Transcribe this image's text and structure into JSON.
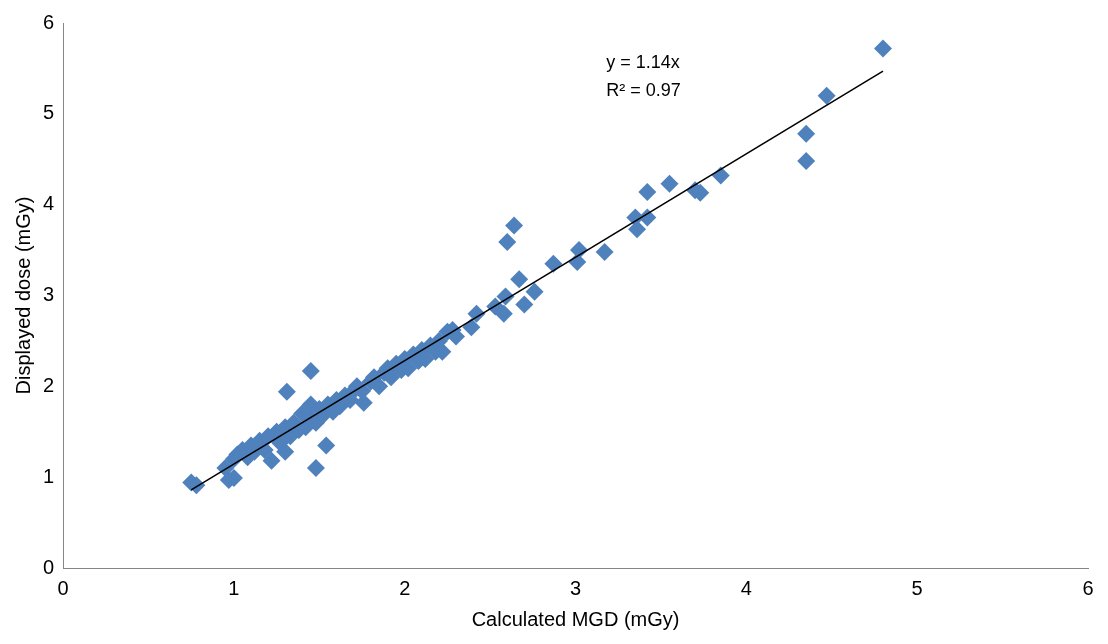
{
  "chart_data": {
    "type": "scatter",
    "xlabel": "Calculated MGD (mGy)",
    "ylabel": "Displayed dose (mGy)",
    "xlim": [
      0,
      6
    ],
    "ylim": [
      0,
      6
    ],
    "xticks": [
      0,
      1,
      2,
      3,
      4,
      5,
      6
    ],
    "yticks": [
      0,
      1,
      2,
      3,
      4,
      5,
      6
    ],
    "marker": "diamond",
    "legend": false,
    "annotations": [
      "y = 1.14x",
      "R² = 0.97"
    ],
    "series": [
      {
        "color": "#4f81bd",
        "x": [
          0.75,
          0.78,
          0.95,
          0.97,
          1.0,
          1.0,
          1.02,
          1.05,
          1.08,
          1.1,
          1.12,
          1.15,
          1.18,
          1.2,
          1.22,
          1.25,
          1.27,
          1.3,
          1.3,
          1.31,
          1.33,
          1.35,
          1.38,
          1.4,
          1.42,
          1.45,
          1.45,
          1.45,
          1.48,
          1.48,
          1.5,
          1.52,
          1.54,
          1.55,
          1.58,
          1.6,
          1.62,
          1.65,
          1.68,
          1.7,
          1.72,
          1.75,
          1.76,
          1.8,
          1.82,
          1.85,
          1.88,
          1.9,
          1.92,
          1.95,
          1.98,
          2.0,
          2.02,
          2.05,
          2.08,
          2.1,
          2.12,
          2.15,
          2.18,
          2.2,
          2.22,
          2.25,
          2.28,
          2.3,
          2.39,
          2.42,
          2.53,
          2.58,
          2.59,
          2.6,
          2.64,
          2.67,
          2.7,
          2.76,
          2.87,
          3.01,
          3.02,
          3.17,
          3.35,
          3.36,
          3.42,
          3.42,
          3.55,
          3.7,
          3.73,
          3.85,
          4.35,
          4.35,
          4.47,
          4.8
        ],
        "values": [
          0.94,
          0.91,
          1.1,
          0.97,
          0.99,
          1.2,
          1.25,
          1.3,
          1.22,
          1.35,
          1.28,
          1.4,
          1.3,
          1.45,
          1.18,
          1.5,
          1.38,
          1.55,
          1.28,
          1.94,
          1.45,
          1.6,
          1.52,
          1.7,
          1.55,
          1.65,
          1.8,
          2.17,
          1.6,
          1.1,
          1.75,
          1.68,
          1.35,
          1.8,
          1.72,
          1.85,
          1.78,
          1.9,
          1.85,
          1.95,
          2.0,
          1.95,
          1.82,
          2.05,
          2.1,
          2.0,
          2.15,
          2.2,
          2.1,
          2.25,
          2.18,
          2.3,
          2.2,
          2.35,
          2.28,
          2.4,
          2.3,
          2.45,
          2.38,
          2.5,
          2.38,
          2.6,
          2.62,
          2.55,
          2.65,
          2.8,
          2.88,
          2.8,
          2.99,
          3.59,
          3.77,
          3.18,
          2.9,
          3.04,
          3.35,
          3.37,
          3.5,
          3.48,
          3.86,
          3.73,
          3.86,
          4.14,
          4.23,
          4.16,
          4.13,
          4.32,
          4.48,
          4.78,
          5.2,
          5.72
        ]
      },
      {
        "type": "line",
        "color": "#000000",
        "marker": "none",
        "x": [
          0.75,
          4.8
        ],
        "values": [
          0.86,
          5.47
        ]
      }
    ]
  }
}
